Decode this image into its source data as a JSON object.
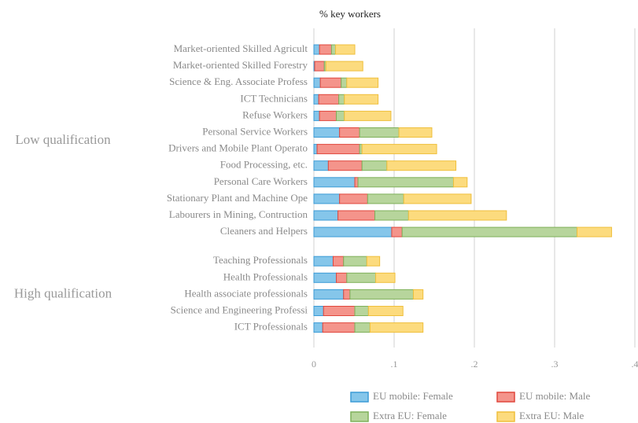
{
  "chart_data": {
    "type": "stacked-barh",
    "title": "% key workers",
    "groups": [
      {
        "name": "Low qualification",
        "categories": [
          "Market-oriented Skilled Agricult",
          "Market-oriented Skilled Forestry",
          "Science & Eng. Associate Profess",
          "ICT Technicians",
          "Refuse Workers",
          "Personal Service Workers",
          "Drivers and Mobile Plant Operato",
          "Food Processing, etc.",
          "Personal Care Workers",
          "Stationary Plant and Machine Ope",
          "Labourers in Mining, Contruction",
          "Cleaners and Helpers"
        ]
      },
      {
        "name": "High qualification",
        "categories": [
          "Teaching Professionals",
          "Health Professionals",
          "Health associate professionals",
          "Science and Engineering Professi",
          "ICT Professionals"
        ]
      }
    ],
    "series": [
      {
        "name": "EU mobile: Female",
        "color": "#85c6ea",
        "edgecolor": "#3b9bd6",
        "values": [
          0.007,
          0.001,
          0.008,
          0.006,
          0.007,
          0.032,
          0.004,
          0.018,
          0.051,
          0.032,
          0.03,
          0.097,
          0.024,
          0.028,
          0.037,
          0.012,
          0.011
        ]
      },
      {
        "name": "EU mobile: Male",
        "color": "#f4948b",
        "edgecolor": "#e0473c",
        "values": [
          0.015,
          0.012,
          0.026,
          0.025,
          0.021,
          0.025,
          0.053,
          0.042,
          0.004,
          0.035,
          0.046,
          0.013,
          0.013,
          0.013,
          0.008,
          0.039,
          0.04
        ]
      },
      {
        "name": "Extra EU: Female",
        "color": "#b7d59c",
        "edgecolor": "#7fb05a",
        "values": [
          0.005,
          0.002,
          0.007,
          0.007,
          0.01,
          0.049,
          0.003,
          0.031,
          0.119,
          0.045,
          0.042,
          0.218,
          0.029,
          0.036,
          0.079,
          0.017,
          0.019
        ]
      },
      {
        "name": "Extra EU: Male",
        "color": "#fcdb7e",
        "edgecolor": "#efbf3c",
        "values": [
          0.024,
          0.046,
          0.039,
          0.042,
          0.058,
          0.041,
          0.093,
          0.086,
          0.017,
          0.084,
          0.122,
          0.043,
          0.016,
          0.024,
          0.012,
          0.043,
          0.066
        ]
      }
    ],
    "xlim": [
      0,
      0.4
    ],
    "xticks": [
      0,
      {
        "value": 0.1,
        "label": ".1"
      },
      {
        "value": 0.2,
        "label": ".2"
      },
      {
        "value": 0.3,
        "label": ".3"
      },
      {
        "value": 0.4,
        "label": ".4"
      }
    ],
    "grid": true
  }
}
